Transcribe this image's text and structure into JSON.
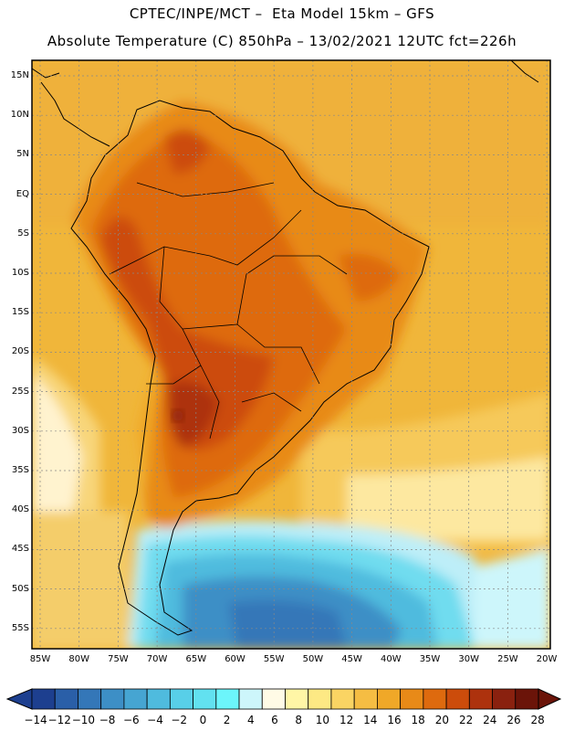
{
  "title": {
    "line1": "CPTEC/INPE/MCT –  Eta Model 15km – GFS",
    "line2": "Absolute Temperature (C) 850hPa – 13/02/2021 12UTC fct=226h"
  },
  "axes": {
    "lat_labels": [
      "15N",
      "10N",
      "5N",
      "EQ",
      "5S",
      "10S",
      "15S",
      "20S",
      "25S",
      "30S",
      "35S",
      "40S",
      "45S",
      "50S",
      "55S"
    ],
    "lon_labels": [
      "85W",
      "80W",
      "75W",
      "70W",
      "65W",
      "60W",
      "55W",
      "50W",
      "45W",
      "40W",
      "35W",
      "30W",
      "25W",
      "20W"
    ]
  },
  "colorbar": {
    "labels": [
      "-14",
      "-12",
      "-10",
      "-8",
      "-6",
      "-4",
      "-2",
      "0",
      "2",
      "4",
      "6",
      "8",
      "10",
      "12",
      "14",
      "16",
      "18",
      "20",
      "22",
      "24",
      "26",
      "28"
    ],
    "colors": [
      "#1d3f8f",
      "#2a5fa8",
      "#3477b8",
      "#3d8fc6",
      "#46a5d2",
      "#4fbbde",
      "#58cfe8",
      "#62e1f0",
      "#6cf5fb",
      "#cdf6fb",
      "#fffbe6",
      "#fff6a6",
      "#fde984",
      "#fad463",
      "#f5bd43",
      "#f0a828",
      "#e88a18",
      "#de6a0e",
      "#cc4c0b",
      "#ad320d",
      "#8a210f",
      "#6b1409"
    ]
  }
}
